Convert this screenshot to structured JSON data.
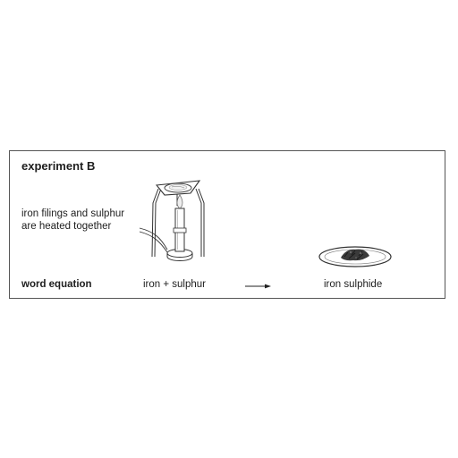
{
  "panel": {
    "title": "experiment B",
    "description_line1": "iron filings and sulphur",
    "description_line2": "are heated together",
    "word_equation_label": "word equation",
    "reactants": "iron + sulphur",
    "product": "iron sulphide"
  }
}
